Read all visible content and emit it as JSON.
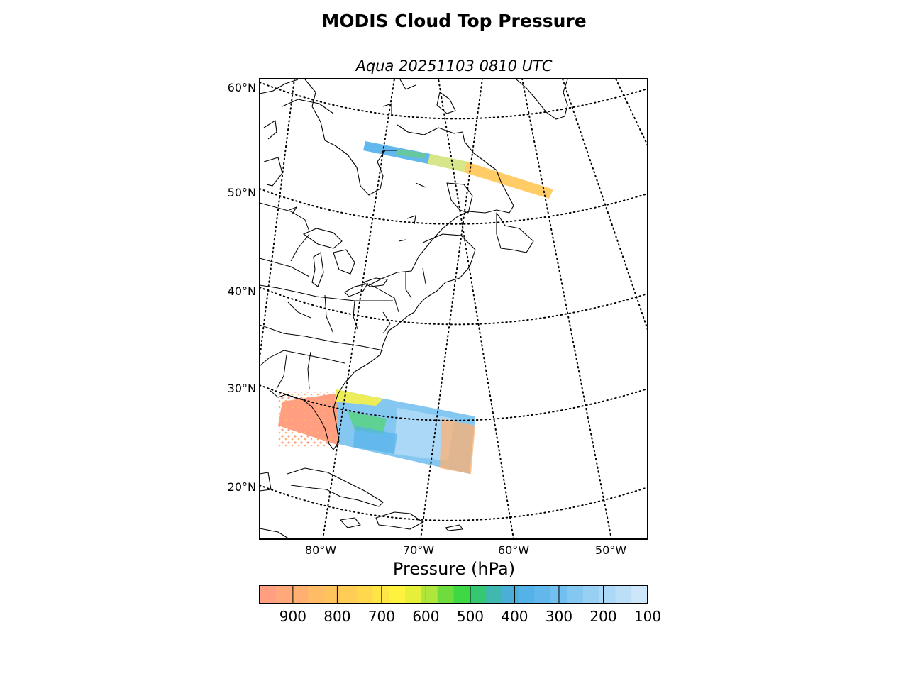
{
  "title": "MODIS Cloud Top Pressure",
  "subtitle": "Aqua 20251103 0810 UTC",
  "map": {
    "lat_labels": [
      "60°N",
      "50°N",
      "40°N",
      "30°N",
      "20°N"
    ],
    "lon_labels": [
      "80°W",
      "70°W",
      "60°W",
      "50°W"
    ],
    "gridline_style": "dotted",
    "region": "Eastern North America and western North Atlantic",
    "swaths": [
      {
        "name": "northern swath",
        "dominant_pressure_hPa": "400-800"
      },
      {
        "name": "southern swath",
        "dominant_pressure_hPa": "150-950"
      }
    ]
  },
  "colorbar": {
    "label": "Pressure (hPa)",
    "tick_labels": [
      "900",
      "800",
      "700",
      "600",
      "500",
      "400",
      "300",
      "200",
      "100"
    ],
    "ticks": [
      900,
      800,
      700,
      600,
      500,
      400,
      300,
      200,
      100
    ],
    "range": [
      975,
      100
    ],
    "colors": [
      "#ff9e80",
      "#ffa87a",
      "#ffb070",
      "#ffbb66",
      "#ffc35e",
      "#ffcc55",
      "#ffd84e",
      "#ffe645",
      "#fff23e",
      "#e6f03a",
      "#aee63c",
      "#6fdc3e",
      "#3fd845",
      "#35c870",
      "#40b8b0",
      "#4aaed8",
      "#55b2e8",
      "#62b8ec",
      "#72c0f0",
      "#84c8f2",
      "#98d0f4",
      "#aad8f6",
      "#bcdff8",
      "#cde6fa"
    ]
  },
  "chart_data": {
    "type": "heatmap",
    "title": "MODIS Cloud Top Pressure",
    "subtitle": "Aqua 20251103 0810 UTC",
    "colorbar_label": "Pressure (hPa)",
    "colorbar_range": [
      975,
      100
    ],
    "lat_ticks": [
      60,
      50,
      40,
      30,
      20
    ],
    "lon_ticks": [
      -80,
      -70,
      -60,
      -50
    ]
  }
}
